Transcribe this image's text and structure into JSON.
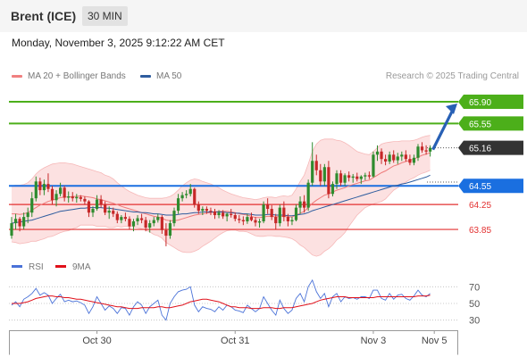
{
  "header": {
    "title": "Brent (ICE)",
    "timeframe": "30 MIN"
  },
  "timestamp": "Monday, November 3, 2025 9:12:22 AM CET",
  "legend": [
    {
      "label": "MA 20 + Bollinger Bands",
      "color": "#f08080"
    },
    {
      "label": "MA 50",
      "color": "#2e5c9e"
    }
  ],
  "credit": "Research © 2025 Trading Central",
  "chart_data": {
    "type": "candlestick",
    "ylim": [
      63.45,
      66.1
    ],
    "levels": [
      {
        "value": 65.9,
        "label": "65.90",
        "color": "#4caf1a",
        "style": "tag"
      },
      {
        "value": 65.55,
        "label": "65.55",
        "color": "#4caf1a",
        "style": "tag"
      },
      {
        "value": 65.16,
        "label": "65.16",
        "color": "#333333",
        "style": "current"
      },
      {
        "value": 64.55,
        "label": "64.55",
        "color": "#1a6fe0",
        "style": "tag"
      },
      {
        "value": 64.25,
        "label": "64.25",
        "color": "#e33030",
        "style": "text"
      },
      {
        "value": 63.85,
        "label": "63.85",
        "color": "#e33030",
        "style": "text"
      }
    ],
    "x_ticks": [
      {
        "label": "Oct 30",
        "index": 21
      },
      {
        "label": "Oct 31",
        "index": 55
      },
      {
        "label": "Nov 3",
        "index": 89
      },
      {
        "label": "Nov 5",
        "index": 104
      }
    ],
    "bars": [
      [
        63.75,
        64.05,
        63.7,
        63.95
      ],
      [
        63.95,
        64.1,
        63.85,
        64.02
      ],
      [
        64.02,
        64.05,
        63.82,
        63.9
      ],
      [
        63.9,
        64.12,
        63.85,
        64.05
      ],
      [
        64.05,
        64.2,
        63.95,
        64.12
      ],
      [
        64.12,
        64.45,
        64.05,
        64.35
      ],
      [
        64.35,
        64.7,
        64.3,
        64.62
      ],
      [
        64.62,
        64.68,
        64.4,
        64.48
      ],
      [
        64.48,
        64.65,
        64.4,
        64.58
      ],
      [
        64.58,
        64.75,
        64.45,
        64.5
      ],
      [
        64.5,
        64.55,
        64.25,
        64.32
      ],
      [
        64.32,
        64.48,
        64.22,
        64.42
      ],
      [
        64.42,
        64.6,
        64.38,
        64.52
      ],
      [
        64.52,
        64.55,
        64.3,
        64.36
      ],
      [
        64.36,
        64.46,
        64.28,
        64.38
      ],
      [
        64.38,
        64.45,
        64.3,
        64.35
      ],
      [
        64.35,
        64.42,
        64.28,
        64.37
      ],
      [
        64.37,
        64.4,
        64.3,
        64.34
      ],
      [
        64.34,
        64.38,
        64.25,
        64.3
      ],
      [
        64.3,
        64.32,
        64.05,
        64.12
      ],
      [
        64.12,
        64.22,
        64.05,
        64.18
      ],
      [
        64.18,
        64.4,
        64.15,
        64.33
      ],
      [
        64.33,
        64.4,
        64.2,
        64.25
      ],
      [
        64.25,
        64.3,
        64.08,
        64.12
      ],
      [
        64.12,
        64.22,
        64.02,
        64.15
      ],
      [
        64.15,
        64.2,
        64.05,
        64.1
      ],
      [
        64.1,
        64.14,
        63.95,
        64.0
      ],
      [
        64.0,
        64.08,
        63.95,
        64.05
      ],
      [
        64.05,
        64.12,
        63.98,
        64.02
      ],
      [
        64.02,
        64.06,
        63.85,
        63.9
      ],
      [
        63.9,
        64.02,
        63.82,
        63.98
      ],
      [
        63.98,
        64.08,
        63.92,
        64.03
      ],
      [
        64.03,
        64.1,
        63.95,
        64.0
      ],
      [
        64.0,
        64.05,
        63.82,
        63.88
      ],
      [
        63.88,
        64.0,
        63.8,
        63.95
      ],
      [
        63.95,
        64.05,
        63.9,
        64.0
      ],
      [
        64.0,
        64.1,
        63.96,
        64.05
      ],
      [
        64.05,
        64.08,
        63.78,
        63.84
      ],
      [
        63.84,
        63.95,
        63.58,
        63.75
      ],
      [
        63.75,
        64.0,
        63.7,
        63.95
      ],
      [
        63.95,
        64.2,
        63.9,
        64.15
      ],
      [
        64.15,
        64.42,
        64.1,
        64.35
      ],
      [
        64.35,
        64.45,
        64.3,
        64.4
      ],
      [
        64.4,
        64.48,
        64.35,
        64.42
      ],
      [
        64.42,
        64.58,
        64.38,
        64.5
      ],
      [
        64.5,
        64.52,
        64.2,
        64.25
      ],
      [
        64.25,
        64.3,
        64.1,
        64.15
      ],
      [
        64.15,
        64.22,
        64.08,
        64.18
      ],
      [
        64.18,
        64.22,
        64.1,
        64.15
      ],
      [
        64.15,
        64.2,
        64.08,
        64.14
      ],
      [
        64.14,
        64.18,
        64.02,
        64.08
      ],
      [
        64.08,
        64.16,
        64.03,
        64.12
      ],
      [
        64.12,
        64.16,
        64.02,
        64.06
      ],
      [
        64.06,
        64.12,
        63.98,
        64.1
      ],
      [
        64.1,
        64.18,
        64.04,
        64.08
      ],
      [
        64.08,
        64.12,
        63.98,
        64.02
      ],
      [
        64.02,
        64.08,
        63.95,
        64.0
      ],
      [
        64.0,
        64.06,
        63.92,
        63.98
      ],
      [
        63.98,
        64.1,
        63.94,
        64.05
      ],
      [
        64.05,
        64.12,
        63.98,
        64.0
      ],
      [
        64.0,
        64.05,
        63.9,
        63.96
      ],
      [
        63.96,
        64.02,
        63.88,
        63.98
      ],
      [
        63.98,
        64.3,
        63.95,
        64.25
      ],
      [
        64.25,
        64.35,
        64.1,
        64.18
      ],
      [
        64.18,
        64.24,
        64.0,
        64.05
      ],
      [
        64.05,
        64.1,
        63.85,
        63.95
      ],
      [
        63.95,
        64.25,
        63.9,
        64.2
      ],
      [
        64.2,
        64.3,
        63.98,
        64.05
      ],
      [
        64.05,
        64.1,
        63.9,
        63.98
      ],
      [
        63.98,
        64.05,
        63.92,
        64.0
      ],
      [
        64.0,
        64.25,
        63.98,
        64.2
      ],
      [
        64.2,
        64.38,
        64.1,
        64.3
      ],
      [
        64.3,
        64.4,
        64.12,
        64.2
      ],
      [
        64.2,
        64.65,
        64.15,
        64.6
      ],
      [
        64.6,
        65.25,
        64.55,
        64.95
      ],
      [
        64.95,
        65.05,
        64.72,
        64.8
      ],
      [
        64.8,
        64.9,
        64.55,
        64.62
      ],
      [
        64.62,
        64.9,
        64.55,
        64.85
      ],
      [
        64.85,
        64.95,
        64.35,
        64.42
      ],
      [
        64.42,
        64.62,
        64.38,
        64.58
      ],
      [
        64.58,
        64.8,
        64.5,
        64.75
      ],
      [
        64.75,
        64.8,
        64.55,
        64.6
      ],
      [
        64.6,
        64.75,
        64.55,
        64.72
      ],
      [
        64.72,
        64.78,
        64.62,
        64.68
      ],
      [
        64.68,
        64.74,
        64.6,
        64.7
      ],
      [
        64.7,
        64.76,
        64.62,
        64.66
      ],
      [
        64.66,
        64.72,
        64.58,
        64.7
      ],
      [
        64.7,
        64.76,
        64.64,
        64.72
      ],
      [
        64.72,
        64.78,
        64.66,
        64.7
      ],
      [
        64.7,
        65.1,
        64.68,
        65.05
      ],
      [
        65.05,
        65.2,
        64.95,
        65.1
      ],
      [
        65.1,
        65.15,
        64.9,
        64.98
      ],
      [
        64.98,
        65.05,
        64.88,
        64.94
      ],
      [
        64.94,
        65.1,
        64.9,
        65.05
      ],
      [
        65.05,
        65.12,
        64.92,
        64.96
      ],
      [
        64.96,
        65.08,
        64.9,
        65.02
      ],
      [
        65.02,
        65.1,
        64.95,
        65.05
      ],
      [
        65.05,
        65.12,
        64.94,
        64.98
      ],
      [
        64.98,
        65.05,
        64.88,
        64.92
      ],
      [
        64.92,
        65.05,
        64.88,
        65.0
      ],
      [
        65.0,
        65.22,
        64.95,
        65.18
      ],
      [
        65.18,
        65.25,
        65.08,
        65.12
      ],
      [
        65.12,
        65.2,
        65.05,
        65.1
      ],
      [
        65.1,
        65.2,
        65.02,
        65.16
      ]
    ],
    "ma20": [
      64.1,
      64.1,
      64.09,
      64.1,
      64.12,
      64.16,
      64.2,
      64.24,
      64.27,
      64.3,
      64.32,
      64.34,
      64.36,
      64.37,
      64.37,
      64.38,
      64.38,
      64.39,
      64.38,
      64.37,
      64.36,
      64.34,
      64.33,
      64.31,
      64.29,
      64.27,
      64.25,
      64.22,
      64.2,
      64.18,
      64.16,
      64.14,
      64.12,
      64.1,
      64.08,
      64.06,
      64.05,
      64.03,
      64.0,
      63.99,
      63.99,
      64.0,
      64.02,
      64.04,
      64.06,
      64.08,
      64.09,
      64.1,
      64.11,
      64.12,
      64.13,
      64.14,
      64.14,
      64.14,
      64.13,
      64.12,
      64.1,
      64.09,
      64.08,
      64.06,
      64.04,
      64.04,
      64.05,
      64.06,
      64.06,
      64.05,
      64.06,
      64.06,
      64.05,
      64.05,
      64.08,
      64.11,
      64.14,
      64.2,
      64.27,
      64.32,
      64.36,
      64.4,
      64.42,
      64.45,
      64.48,
      64.5,
      64.52,
      64.55,
      64.57,
      64.59,
      64.61,
      64.63,
      64.64,
      64.68,
      64.72,
      64.76,
      64.79,
      64.83,
      64.87,
      64.89,
      64.92,
      64.94,
      64.96,
      64.98,
      65.01,
      65.04,
      65.06,
      65.08
    ],
    "bb_upper": [
      64.55,
      64.56,
      64.56,
      64.57,
      64.6,
      64.66,
      64.74,
      64.8,
      64.84,
      64.87,
      64.9,
      64.91,
      64.92,
      64.92,
      64.91,
      64.9,
      64.88,
      64.86,
      64.84,
      64.82,
      64.8,
      64.78,
      64.76,
      64.72,
      64.7,
      64.66,
      64.6,
      64.55,
      64.5,
      64.46,
      64.43,
      64.4,
      64.38,
      64.36,
      64.35,
      64.35,
      64.35,
      64.35,
      64.36,
      64.38,
      64.42,
      64.48,
      64.55,
      64.6,
      64.64,
      64.66,
      64.65,
      64.62,
      64.6,
      64.58,
      64.55,
      64.52,
      64.48,
      64.45,
      64.42,
      64.4,
      64.38,
      64.36,
      64.35,
      64.34,
      64.33,
      64.34,
      64.36,
      64.37,
      64.37,
      64.36,
      64.38,
      64.39,
      64.38,
      64.4,
      64.5,
      64.62,
      64.72,
      64.9,
      65.1,
      65.22,
      65.28,
      65.3,
      65.3,
      65.3,
      65.28,
      65.27,
      65.24,
      65.2,
      65.15,
      65.1,
      65.08,
      65.06,
      65.05,
      65.1,
      65.16,
      65.22,
      65.24,
      65.25,
      65.26,
      65.26,
      65.27,
      65.27,
      65.27,
      65.28,
      65.3,
      65.33,
      65.35,
      65.36
    ],
    "bb_lower": [
      63.65,
      63.64,
      63.62,
      63.63,
      63.64,
      63.66,
      63.66,
      63.68,
      63.7,
      63.73,
      63.74,
      63.77,
      63.8,
      63.82,
      63.83,
      63.86,
      63.88,
      63.92,
      63.92,
      63.92,
      63.92,
      63.9,
      63.9,
      63.9,
      63.88,
      63.88,
      63.9,
      63.89,
      63.9,
      63.9,
      63.89,
      63.88,
      63.86,
      63.84,
      63.81,
      63.77,
      63.75,
      63.71,
      63.64,
      63.6,
      63.56,
      63.52,
      63.49,
      63.48,
      63.48,
      63.5,
      63.53,
      63.58,
      63.62,
      63.66,
      63.71,
      63.76,
      63.8,
      63.83,
      63.84,
      63.84,
      63.82,
      63.82,
      63.81,
      63.78,
      63.75,
      63.74,
      63.74,
      63.75,
      63.75,
      63.74,
      63.74,
      63.73,
      63.72,
      63.7,
      63.66,
      63.6,
      63.56,
      63.5,
      63.44,
      63.42,
      63.44,
      63.5,
      63.54,
      63.6,
      63.68,
      63.73,
      63.8,
      63.9,
      63.99,
      64.08,
      64.14,
      64.2,
      64.23,
      64.26,
      64.28,
      64.3,
      64.34,
      64.41,
      64.48,
      64.52,
      64.57,
      64.61,
      64.65,
      64.68,
      64.72,
      64.75,
      64.77,
      64.8
    ],
    "ma50": [
      63.95,
      63.96,
      63.97,
      63.98,
      63.99,
      64.0,
      64.02,
      64.04,
      64.06,
      64.08,
      64.1,
      64.12,
      64.14,
      64.15,
      64.16,
      64.17,
      64.18,
      64.19,
      64.19,
      64.2,
      64.2,
      64.2,
      64.2,
      64.19,
      64.19,
      64.18,
      64.17,
      64.16,
      64.15,
      64.14,
      64.13,
      64.13,
      64.12,
      64.12,
      64.11,
      64.1,
      64.1,
      64.09,
      64.08,
      64.08,
      64.08,
      64.09,
      64.1,
      64.1,
      64.11,
      64.12,
      64.12,
      64.13,
      64.13,
      64.13,
      64.13,
      64.13,
      64.13,
      64.12,
      64.12,
      64.11,
      64.11,
      64.1,
      64.1,
      64.09,
      64.08,
      64.08,
      64.08,
      64.09,
      64.09,
      64.08,
      64.08,
      64.08,
      64.07,
      64.07,
      64.08,
      64.09,
      64.1,
      64.12,
      64.15,
      64.17,
      64.19,
      64.21,
      64.23,
      64.25,
      64.27,
      64.29,
      64.31,
      64.33,
      64.35,
      64.37,
      64.39,
      64.41,
      64.43,
      64.45,
      64.47,
      64.49,
      64.51,
      64.53,
      64.55,
      64.56,
      64.58,
      64.59,
      64.61,
      64.63,
      64.65,
      64.67,
      64.69,
      64.72
    ],
    "rsi": {
      "name": "RSI",
      "color": "#4a72d8",
      "ma_name": "9MA",
      "ma_color": "#e0101a",
      "ticks": [
        70,
        50,
        30
      ],
      "ylim": [
        20,
        80
      ],
      "values": [
        48,
        52,
        46,
        55,
        58,
        62,
        68,
        60,
        63,
        60,
        50,
        56,
        61,
        52,
        54,
        52,
        53,
        51,
        48,
        38,
        46,
        58,
        50,
        42,
        47,
        44,
        38,
        45,
        44,
        36,
        46,
        52,
        48,
        38,
        46,
        50,
        54,
        36,
        30,
        50,
        58,
        64,
        66,
        67,
        70,
        48,
        40,
        46,
        44,
        43,
        40,
        46,
        42,
        48,
        46,
        42,
        41,
        39,
        48,
        44,
        40,
        44,
        58,
        50,
        42,
        36,
        54,
        44,
        38,
        42,
        56,
        62,
        52,
        70,
        78,
        64,
        56,
        62,
        46,
        58,
        62,
        52,
        58,
        56,
        57,
        55,
        58,
        58,
        56,
        66,
        66,
        56,
        54,
        62,
        55,
        60,
        61,
        56,
        54,
        59,
        66,
        60,
        58,
        62
      ],
      "ma_values": [
        50,
        50,
        50,
        51,
        52,
        54,
        56,
        57,
        58,
        59,
        59,
        58,
        58,
        57,
        57,
        56,
        55,
        55,
        54,
        53,
        52,
        51,
        50,
        49,
        48,
        47,
        46,
        46,
        45,
        44,
        44,
        44,
        45,
        45,
        45,
        45,
        46,
        46,
        45,
        45,
        46,
        47,
        48,
        50,
        52,
        53,
        54,
        55,
        55,
        54,
        53,
        52,
        50,
        48,
        46,
        46,
        45,
        45,
        45,
        44,
        44,
        44,
        45,
        45,
        45,
        44,
        44,
        45,
        45,
        45,
        46,
        47,
        48,
        49,
        50,
        52,
        54,
        55,
        56,
        57,
        58,
        58,
        58,
        57,
        57,
        57,
        57,
        57,
        57,
        57,
        58,
        58,
        58,
        58,
        58,
        58,
        58,
        58,
        58,
        58,
        59,
        59,
        59,
        60
      ]
    }
  }
}
